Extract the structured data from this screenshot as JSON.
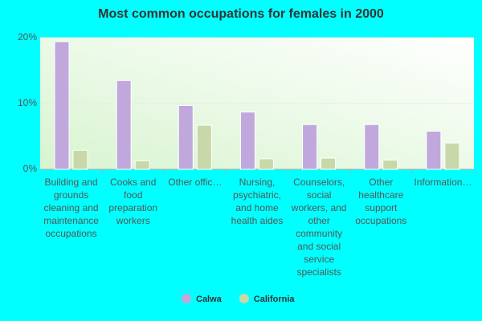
{
  "chart_data": {
    "type": "bar",
    "title": "Most common occupations for females in 2000",
    "categories": [
      "Building and grounds cleaning and maintenance occupations",
      "Cooks and food preparation workers",
      "Other offic…",
      "Nursing, psychiatric, and home health aides",
      "Counselors, social workers, and other community and social service specialists",
      "Other healthcare support occupations",
      "Information…"
    ],
    "series": [
      {
        "name": "Calwa",
        "color": "#c0a8dc",
        "values": [
          19.4,
          13.5,
          9.7,
          8.7,
          6.8,
          6.8,
          5.8
        ]
      },
      {
        "name": "California",
        "color": "#c8d8a8",
        "values": [
          2.9,
          1.3,
          6.7,
          1.6,
          1.7,
          1.4,
          4.0
        ]
      }
    ],
    "ylim": [
      0,
      20
    ],
    "yticks": [
      {
        "value": 0,
        "label": "0%"
      },
      {
        "value": 10,
        "label": "10%"
      },
      {
        "value": 20,
        "label": "20%"
      }
    ],
    "grid": true
  }
}
